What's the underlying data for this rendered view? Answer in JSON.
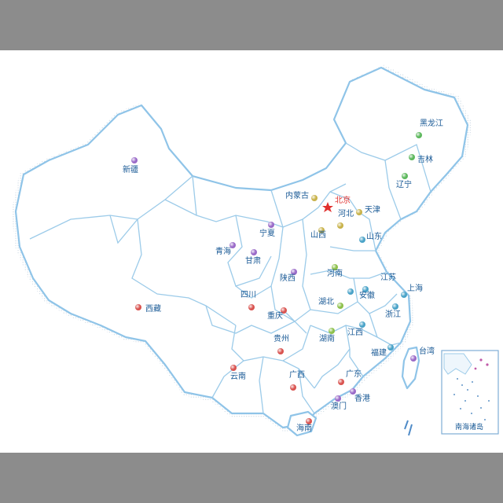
{
  "map": {
    "colors": {
      "page_background": "#8c8c8c",
      "map_background": "#ffffff",
      "border": "#8fc4e8",
      "label": "#1a5a96",
      "capital": "#e0302e"
    },
    "capital": {
      "label": "北京",
      "icon": "red-star-icon"
    },
    "provinces": [
      {
        "label": "黑龙江",
        "dot": "#5cb85c"
      },
      {
        "label": "吉林",
        "dot": "#5cb85c"
      },
      {
        "label": "辽宁",
        "dot": "#5cb85c"
      },
      {
        "label": "内蒙古",
        "dot": "#c8b24a"
      },
      {
        "label": "天津",
        "dot": "#c8b24a"
      },
      {
        "label": "河北",
        "dot": "#c8b24a"
      },
      {
        "label": "山西",
        "dot": "#c8b24a"
      },
      {
        "label": "山东",
        "dot": "#4aa3c8"
      },
      {
        "label": "新疆",
        "dot": "#9a6ac8"
      },
      {
        "label": "宁夏",
        "dot": "#9a6ac8"
      },
      {
        "label": "青海",
        "dot": "#9a6ac8"
      },
      {
        "label": "甘肃",
        "dot": "#9a6ac8"
      },
      {
        "label": "陕西",
        "dot": "#9a6ac8"
      },
      {
        "label": "河南",
        "dot": "#8cc04a"
      },
      {
        "label": "江苏",
        "dot": "#4aa3c8"
      },
      {
        "label": "安徽",
        "dot": "#4aa3c8"
      },
      {
        "label": "上海",
        "dot": "#4aa3c8"
      },
      {
        "label": "湖北",
        "dot": "#8cc04a"
      },
      {
        "label": "浙江",
        "dot": "#4aa3c8"
      },
      {
        "label": "西藏",
        "dot": "#d9534f"
      },
      {
        "label": "四川",
        "dot": "#d9534f"
      },
      {
        "label": "重庆",
        "dot": "#d9534f"
      },
      {
        "label": "贵州",
        "dot": "#d9534f"
      },
      {
        "label": "湖南",
        "dot": "#8cc04a"
      },
      {
        "label": "江西",
        "dot": "#4aa3c8"
      },
      {
        "label": "福建",
        "dot": "#4aa3c8"
      },
      {
        "label": "台湾",
        "dot": "#9a6ac8"
      },
      {
        "label": "云南",
        "dot": "#d9534f"
      },
      {
        "label": "广西",
        "dot": "#d9534f"
      },
      {
        "label": "广东",
        "dot": "#d9534f"
      },
      {
        "label": "香港",
        "dot": "#9a6ac8"
      },
      {
        "label": "澳门",
        "dot": "#9a6ac8"
      },
      {
        "label": "海南",
        "dot": "#d9534f"
      }
    ],
    "inset": {
      "label": "南海诸岛"
    }
  }
}
